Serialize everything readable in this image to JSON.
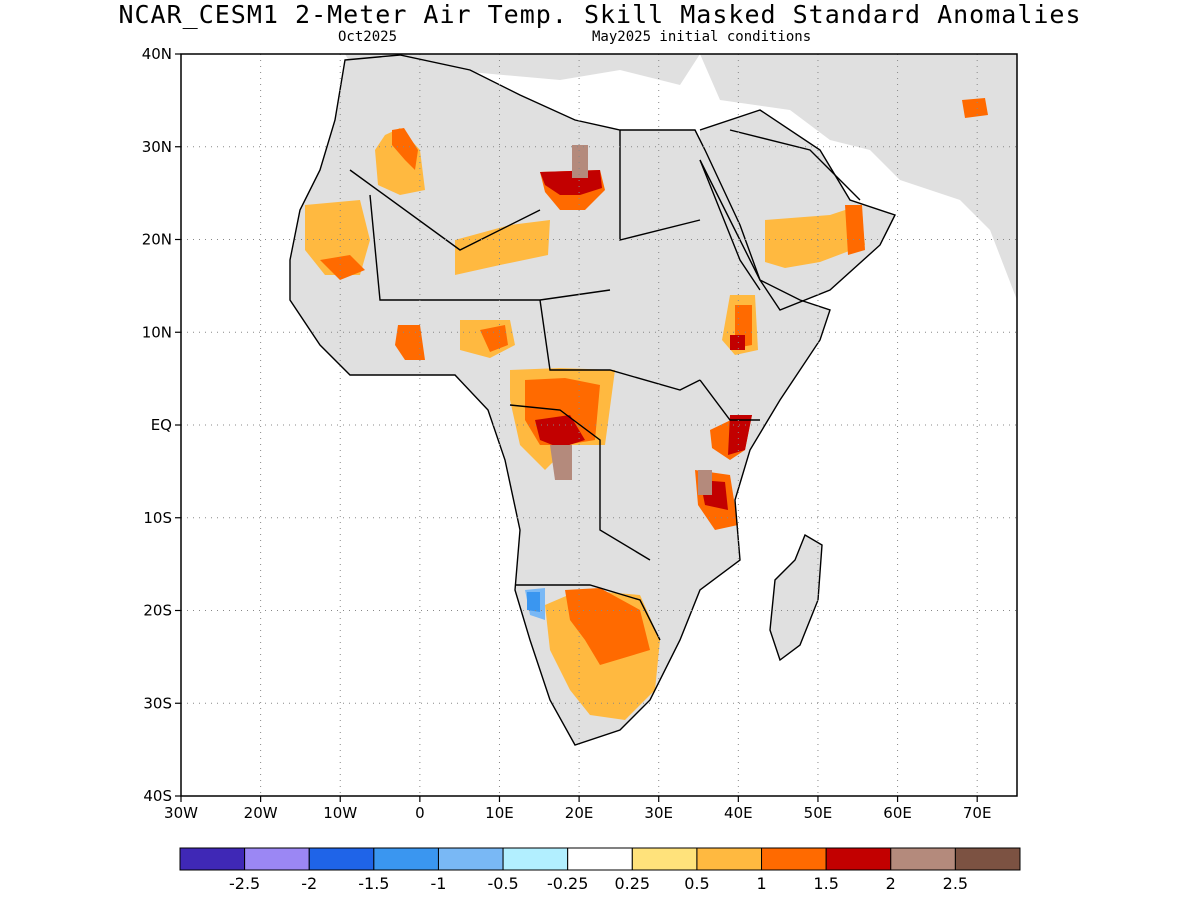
{
  "header": {
    "title": "NCAR_CESM1 2-Meter Air Temp. Skill Masked Standard Anomalies",
    "target_month": "Oct2025",
    "initial_conditions": "May2025 initial conditions"
  },
  "map": {
    "lon_range": [
      -30,
      75
    ],
    "lat_range": [
      -40,
      40
    ],
    "lat_labels": [
      "40N",
      "30N",
      "20N",
      "10N",
      "EQ",
      "10S",
      "20S",
      "30S",
      "40S"
    ],
    "lon_labels": [
      "30W",
      "20W",
      "10W",
      "0",
      "10E",
      "20E",
      "30E",
      "40E",
      "50E",
      "60E",
      "70E"
    ],
    "land_color": "#e0e0e0",
    "grid": true
  },
  "colorbar": {
    "colors": [
      "#3f28b6",
      "#9b87f4",
      "#1f64e8",
      "#3a96f0",
      "#79b8f5",
      "#b2efff",
      "#ffffff",
      "#ffe27b",
      "#ffb940",
      "#ff6a00",
      "#c20000",
      "#b48a7c",
      "#7c5242"
    ],
    "labels": [
      "-2.5",
      "-2",
      "-1.5",
      "-1",
      "-0.5",
      "-0.25",
      "0.25",
      "0.5",
      "1",
      "1.5",
      "2",
      "2.5"
    ]
  },
  "anomaly_regions": [
    {
      "name": "southern-morocco-algeria",
      "level": "0.5"
    },
    {
      "name": "mauritania-mali",
      "level": "0.5"
    },
    {
      "name": "libya-south",
      "level": "1.5"
    },
    {
      "name": "chad-niger",
      "level": "0.5"
    },
    {
      "name": "ghana-togo",
      "level": "1.5"
    },
    {
      "name": "nigeria",
      "level": "0.5"
    },
    {
      "name": "central-africa",
      "level": "1.5"
    },
    {
      "name": "ethiopia",
      "level": "1.5"
    },
    {
      "name": "kenya-coast",
      "level": "2"
    },
    {
      "name": "tanzania",
      "level": "1.5"
    },
    {
      "name": "arabian-peninsula",
      "level": "0.5"
    },
    {
      "name": "southern-africa",
      "level": "1"
    },
    {
      "name": "namibia-coast",
      "level": "-0.5"
    }
  ]
}
